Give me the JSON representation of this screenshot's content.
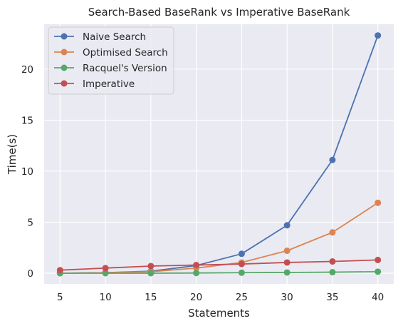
{
  "chart_data": {
    "type": "line",
    "title": "Search-Based BaseRank vs Imperative BaseRank",
    "xlabel": "Statements",
    "ylabel": "Time(s)",
    "x": [
      5,
      10,
      15,
      20,
      25,
      30,
      35,
      40
    ],
    "xticks": [
      "5",
      "10",
      "15",
      "20",
      "25",
      "30",
      "35",
      "40"
    ],
    "yticks": [
      "0",
      "5",
      "10",
      "15",
      "20"
    ],
    "xlim": [
      3.25,
      41.75
    ],
    "ylim": [
      -1.05,
      24.4
    ],
    "grid": true,
    "legend_position": "top-left",
    "series": [
      {
        "name": "Naive Search",
        "color": "#4c72b0",
        "values": [
          0.0,
          0.05,
          0.2,
          0.75,
          1.9,
          4.7,
          11.1,
          23.3
        ]
      },
      {
        "name": "Optimised Search",
        "color": "#dd8452",
        "values": [
          0.0,
          0.05,
          0.15,
          0.5,
          1.05,
          2.2,
          4.0,
          6.9
        ]
      },
      {
        "name": "Racquel's Version",
        "color": "#55a868",
        "values": [
          0.0,
          0.0,
          0.0,
          0.02,
          0.05,
          0.07,
          0.1,
          0.15
        ]
      },
      {
        "name": "Imperative",
        "color": "#c44e52",
        "values": [
          0.3,
          0.5,
          0.7,
          0.8,
          0.9,
          1.05,
          1.15,
          1.3
        ]
      }
    ]
  }
}
